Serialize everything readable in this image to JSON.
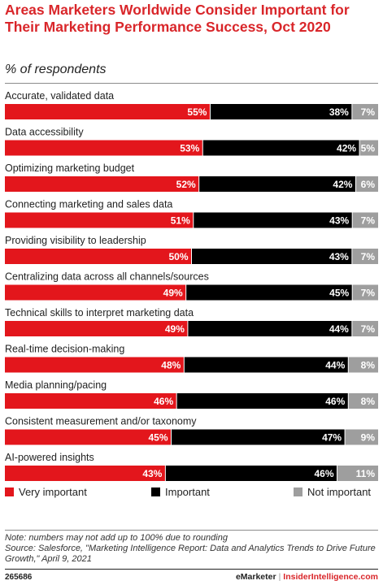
{
  "header": {
    "title": "Areas Marketers Worldwide Consider Important for Their Marketing Performance Success, Oct 2020",
    "subtitle": "% of respondents"
  },
  "colors": {
    "very_important": "#e3161c",
    "important": "#000000",
    "not_important": "#9e9e9e",
    "accent": "#d9262a"
  },
  "chart_data": {
    "type": "bar",
    "orientation": "horizontal-stacked-100",
    "title": "Areas Marketers Worldwide Consider Important for Their Marketing Performance Success, Oct 2020",
    "subtitle": "% of respondents",
    "categories": [
      "Accurate, validated data",
      "Data accessibility",
      "Optimizing marketing budget",
      "Connecting marketing and sales data",
      "Providing visibility to leadership",
      "Centralizing data across all channels/sources",
      "Technical skills to interpret marketing data",
      "Real-time decision-making",
      "Media planning/pacing",
      "Consistent measurement and/or taxonomy",
      "AI-powered insights"
    ],
    "series": [
      {
        "name": "Very important",
        "values": [
          55,
          53,
          52,
          51,
          50,
          49,
          49,
          48,
          46,
          45,
          43
        ]
      },
      {
        "name": "Important",
        "values": [
          38,
          42,
          42,
          43,
          43,
          45,
          44,
          44,
          46,
          47,
          46
        ]
      },
      {
        "name": "Not important",
        "values": [
          7,
          5,
          6,
          7,
          7,
          7,
          7,
          8,
          8,
          9,
          11
        ]
      }
    ],
    "value_suffix": "%",
    "legend_position": "bottom",
    "grid": false
  },
  "legend": {
    "items": [
      {
        "label": "Very important",
        "color": "#e3161c"
      },
      {
        "label": "Important",
        "color": "#000000"
      },
      {
        "label": "Not important",
        "color": "#9e9e9e"
      }
    ]
  },
  "footnote": {
    "note": "Note: numbers may not add up to 100% due to rounding",
    "source": "Source: Salesforce, \"Marketing Intelligence Report: Data and Analytics Trends to Drive Future Growth,\" April 9, 2021"
  },
  "footer": {
    "chart_id": "265686",
    "brand": "eMarketer",
    "separator": "|",
    "site": "InsiderIntelligence.com"
  }
}
